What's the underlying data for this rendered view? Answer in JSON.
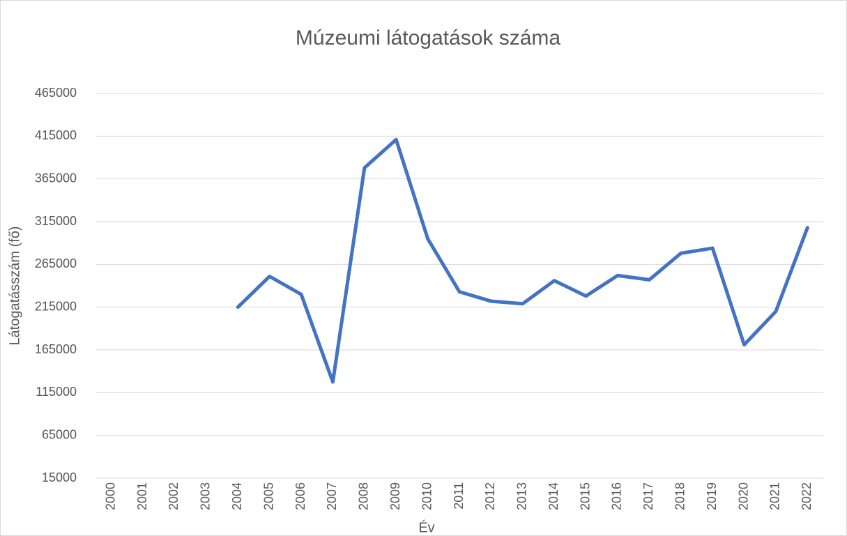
{
  "chart_data": {
    "type": "line",
    "title": "Múzeumi látogatások száma",
    "x_label": "Év",
    "y_label": "Látogatásszám (fő)",
    "categories": [
      "2000",
      "2001",
      "2002",
      "2003",
      "2004",
      "2005",
      "2006",
      "2007",
      "2008",
      "2009",
      "2010",
      "2011",
      "2012",
      "2013",
      "2014",
      "2015",
      "2016",
      "2017",
      "2018",
      "2019",
      "2020",
      "2021",
      "2022"
    ],
    "series": [
      {
        "name": "Látogatásszám",
        "color": "#4472c4",
        "values": [
          null,
          null,
          null,
          null,
          215000,
          251000,
          230000,
          127500,
          378000,
          411000,
          295000,
          233000,
          222000,
          219000,
          246000,
          228000,
          252000,
          247000,
          278000,
          284000,
          171000,
          210000,
          308000
        ]
      }
    ],
    "ylim": [
      15000,
      465000
    ],
    "yticks": [
      15000,
      65000,
      115000,
      165000,
      215000,
      265000,
      315000,
      365000,
      415000,
      465000
    ],
    "grid": true
  }
}
